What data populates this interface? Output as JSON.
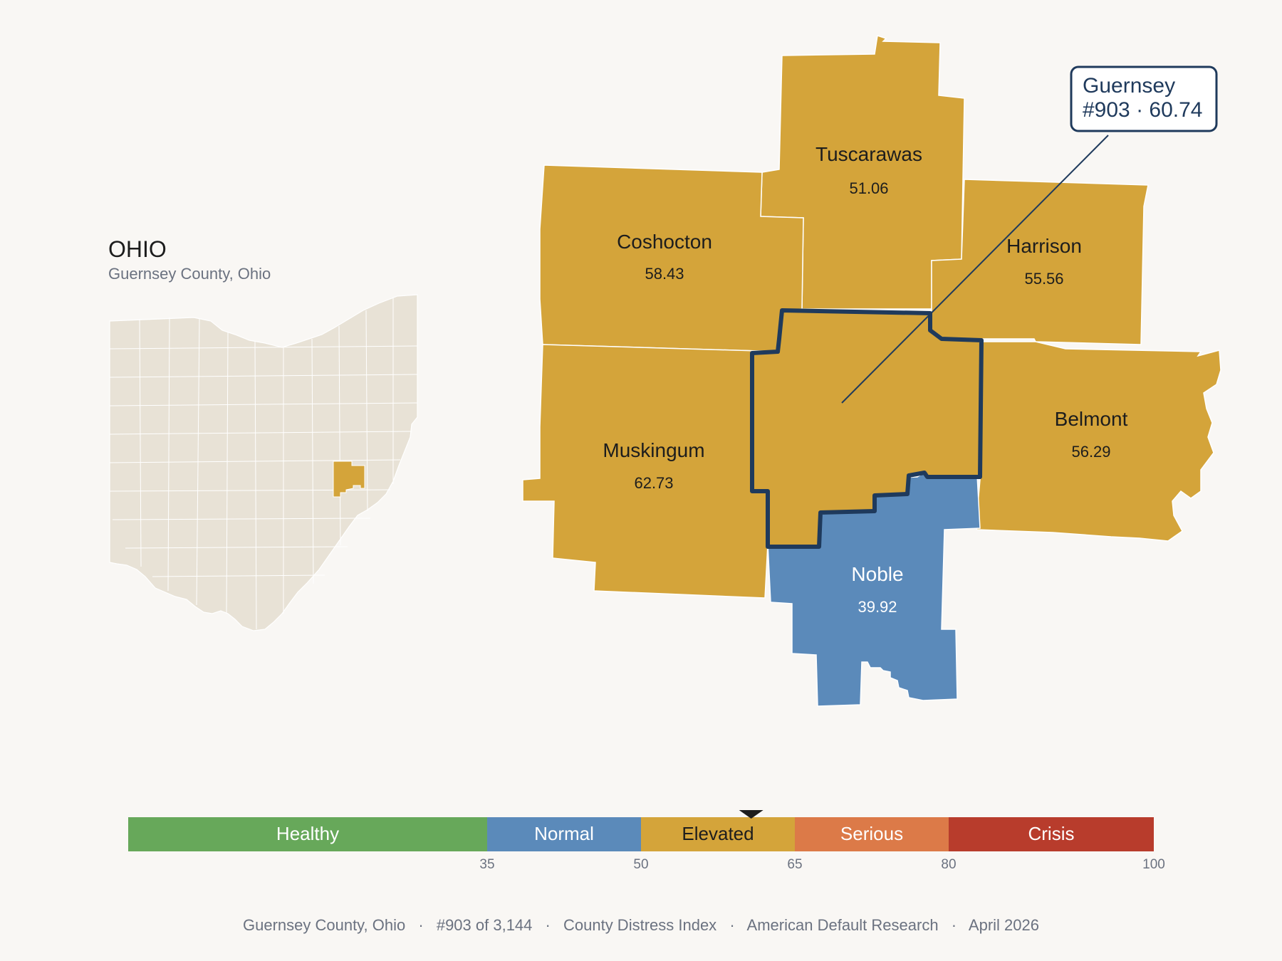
{
  "inset": {
    "title": "OHIO",
    "subtitle": "Guernsey County, Ohio",
    "base_color": "#e8e2d6",
    "highlight_color": "#d4a43a"
  },
  "map": {
    "highlight": "Guernsey",
    "counties": [
      {
        "name": "Tuscarawas",
        "value": "51.06",
        "category": "Elevated"
      },
      {
        "name": "Coshocton",
        "value": "58.43",
        "category": "Elevated"
      },
      {
        "name": "Harrison",
        "value": "55.56",
        "category": "Elevated"
      },
      {
        "name": "Muskingum",
        "value": "62.73",
        "category": "Elevated"
      },
      {
        "name": "Belmont",
        "value": "56.29",
        "category": "Elevated"
      },
      {
        "name": "Noble",
        "value": "39.92",
        "category": "Normal"
      },
      {
        "name": "Guernsey",
        "value": "60.74",
        "category": "Elevated"
      }
    ],
    "callout": {
      "line1": "Guernsey",
      "line2": "#903 · 60.74"
    },
    "colors": {
      "Elevated": "#d4a43a",
      "Normal": "#5b8aba",
      "outline": "#1f3a5c"
    }
  },
  "legend": {
    "min": 0,
    "max": 100,
    "marker_value": 60.74,
    "bands": [
      {
        "label": "Healthy",
        "from": 0,
        "to": 35,
        "color": "#67a85a",
        "text_color": "#ffffff"
      },
      {
        "label": "Normal",
        "from": 35,
        "to": 50,
        "color": "#5b8aba",
        "text_color": "#ffffff"
      },
      {
        "label": "Elevated",
        "from": 50,
        "to": 65,
        "color": "#d4a43a",
        "text_color": "#1d1d1d"
      },
      {
        "label": "Serious",
        "from": 65,
        "to": 80,
        "color": "#dc7a48",
        "text_color": "#ffffff"
      },
      {
        "label": "Crisis",
        "from": 80,
        "to": 100,
        "color": "#b83c2c",
        "text_color": "#ffffff"
      }
    ],
    "ticks": [
      "35",
      "50",
      "65",
      "80",
      "100"
    ]
  },
  "footer": {
    "county": "Guernsey County, Ohio",
    "rank": "#903 of 3,144",
    "index": "County Distress Index",
    "source": "American Default Research",
    "date": "April 2026",
    "separator": "·"
  }
}
